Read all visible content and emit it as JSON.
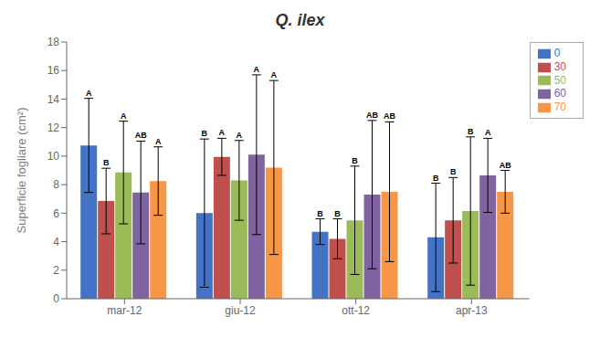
{
  "chart_data": {
    "type": "bar",
    "title": "Q. ilex",
    "ylabel": "Superficie fogliare (cm²)",
    "categories": [
      "mar-12",
      "giu-12",
      "ott-12",
      "apr-13"
    ],
    "series": [
      {
        "name": "0",
        "color": "#4472C4",
        "values": [
          10.75,
          6.0,
          4.7,
          4.3
        ],
        "errors": [
          3.3,
          5.2,
          0.9,
          3.8
        ],
        "letters": [
          "A",
          "B",
          "B",
          "B"
        ]
      },
      {
        "name": "30",
        "color": "#C0504D",
        "values": [
          6.85,
          9.95,
          4.2,
          5.5
        ],
        "errors": [
          2.3,
          1.3,
          1.4,
          3.0
        ],
        "letters": [
          "B",
          "A",
          "B",
          "B"
        ]
      },
      {
        "name": "50",
        "color": "#9BBB59",
        "values": [
          8.85,
          8.3,
          5.5,
          6.15
        ],
        "errors": [
          3.6,
          2.8,
          3.8,
          5.2
        ],
        "letters": [
          "A",
          "A",
          "B",
          "B"
        ]
      },
      {
        "name": "60",
        "color": "#8064A2",
        "values": [
          7.45,
          10.1,
          7.3,
          8.65
        ],
        "errors": [
          3.6,
          5.6,
          5.2,
          2.6
        ],
        "letters": [
          "AB",
          "A",
          "AB",
          "A"
        ]
      },
      {
        "name": "70",
        "color": "#F79646",
        "values": [
          8.25,
          9.2,
          7.5,
          7.5
        ],
        "errors": [
          2.4,
          6.1,
          4.9,
          1.5
        ],
        "letters": [
          "A",
          "A",
          "AB",
          "AB"
        ]
      }
    ],
    "ylim": [
      0,
      18
    ],
    "yticks": [
      0,
      2,
      4,
      6,
      8,
      10,
      12,
      14,
      16,
      18
    ],
    "grid": false,
    "legend": "upper right"
  }
}
